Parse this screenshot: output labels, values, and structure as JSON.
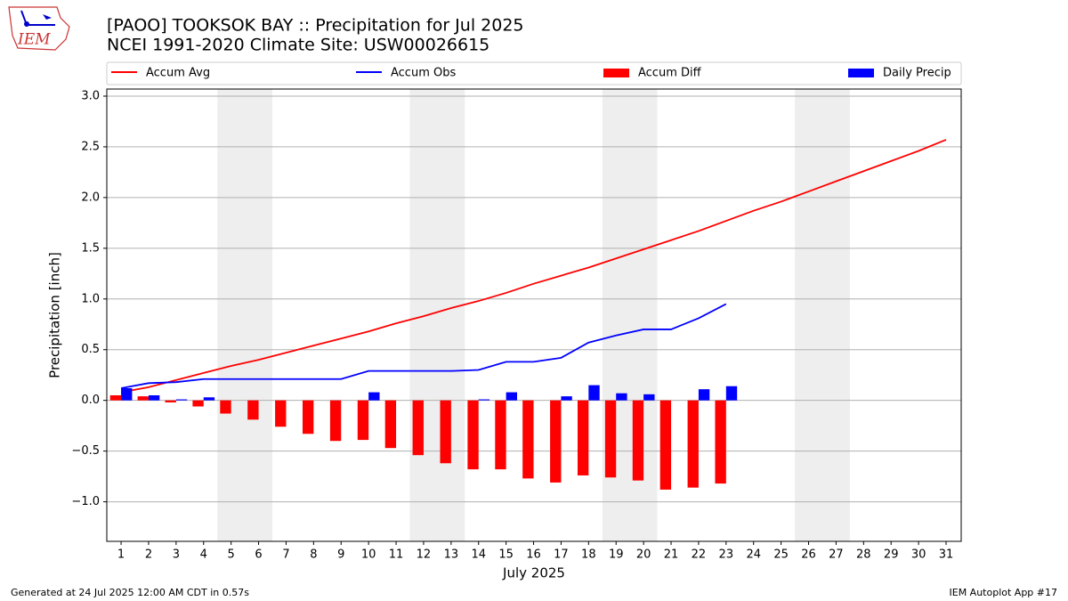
{
  "chart_data": {
    "type": "line",
    "title": "[PAOO] TOOKSOK BAY :: Precipitation for Jul 2025",
    "subtitle": "NCEI 1991-2020 Climate Site: USW00026615",
    "x_label": "July 2025",
    "y_label": "Precipitation [inch]",
    "logo_text": "IEM",
    "footer_left": "Generated at 24 Jul 2025 12:00 AM CDT in 0.57s",
    "footer_right": "IEM Autoplot App #17",
    "x": [
      1,
      2,
      3,
      4,
      5,
      6,
      7,
      8,
      9,
      10,
      11,
      12,
      13,
      14,
      15,
      16,
      17,
      18,
      19,
      20,
      21,
      22,
      23,
      24,
      25,
      26,
      27,
      28,
      29,
      30,
      31
    ],
    "xlim": [
      0.48,
      31.55
    ],
    "xticks": [
      1,
      2,
      3,
      4,
      5,
      6,
      7,
      8,
      9,
      10,
      11,
      12,
      13,
      14,
      15,
      16,
      17,
      18,
      19,
      20,
      21,
      22,
      23,
      24,
      25,
      26,
      27,
      28,
      29,
      30,
      31
    ],
    "ylim": [
      -1.39,
      3.07
    ],
    "yticks": [
      {
        "value": -1,
        "label": "−1.0"
      },
      {
        "value": -0.5,
        "label": "−0.5"
      },
      {
        "value": 0,
        "label": "0.0"
      },
      0.5,
      {
        "value": 1,
        "label": "1.0"
      },
      1.5,
      {
        "value": 2,
        "label": "2.0"
      },
      2.5,
      {
        "value": 3,
        "label": "3.0"
      }
    ],
    "grid": true,
    "weekend_bands": [
      [
        4.5,
        6.5
      ],
      [
        11.5,
        13.5
      ],
      [
        18.5,
        20.5
      ],
      [
        25.5,
        27.5
      ]
    ],
    "series": [
      {
        "name": "Accum Avg",
        "type": "line",
        "color": "#ff0000",
        "values": [
          0.08,
          0.13,
          0.2,
          0.27,
          0.34,
          0.4,
          0.47,
          0.54,
          0.61,
          0.68,
          0.76,
          0.83,
          0.91,
          0.98,
          1.06,
          1.15,
          1.23,
          1.31,
          1.4,
          1.49,
          1.58,
          1.67,
          1.77,
          1.87,
          1.96,
          2.06,
          2.16,
          2.26,
          2.36,
          2.46,
          2.57
        ]
      },
      {
        "name": "Accum Obs",
        "type": "line",
        "color": "#0000ff",
        "values": [
          0.12,
          0.17,
          0.18,
          0.21,
          0.21,
          0.21,
          0.21,
          0.21,
          0.21,
          0.29,
          0.29,
          0.29,
          0.29,
          0.3,
          0.38,
          0.38,
          0.42,
          0.57,
          0.64,
          0.7,
          0.7,
          0.81,
          0.95,
          null,
          null,
          null,
          null,
          null,
          null,
          null,
          null
        ]
      },
      {
        "name": "Accum Diff",
        "type": "bar",
        "color": "#ff0000",
        "values": [
          0.05,
          0.04,
          -0.02,
          -0.06,
          -0.13,
          -0.19,
          -0.26,
          -0.33,
          -0.4,
          -0.39,
          -0.47,
          -0.54,
          -0.62,
          -0.68,
          -0.68,
          -0.77,
          -0.81,
          -0.74,
          -0.76,
          -0.79,
          -0.88,
          -0.86,
          -0.82,
          null,
          null,
          null,
          null,
          null,
          null,
          null,
          null
        ]
      },
      {
        "name": "Daily Precip",
        "type": "bar",
        "color": "#0000ff",
        "values": [
          0.12,
          0.05,
          0.01,
          0.03,
          0,
          0,
          0,
          0,
          0,
          0.08,
          0,
          0,
          0,
          0.01,
          0.08,
          0,
          0.04,
          0.15,
          0.07,
          0.06,
          0,
          0.11,
          0.14,
          null,
          null,
          null,
          null,
          null,
          null,
          null,
          null
        ]
      }
    ]
  }
}
